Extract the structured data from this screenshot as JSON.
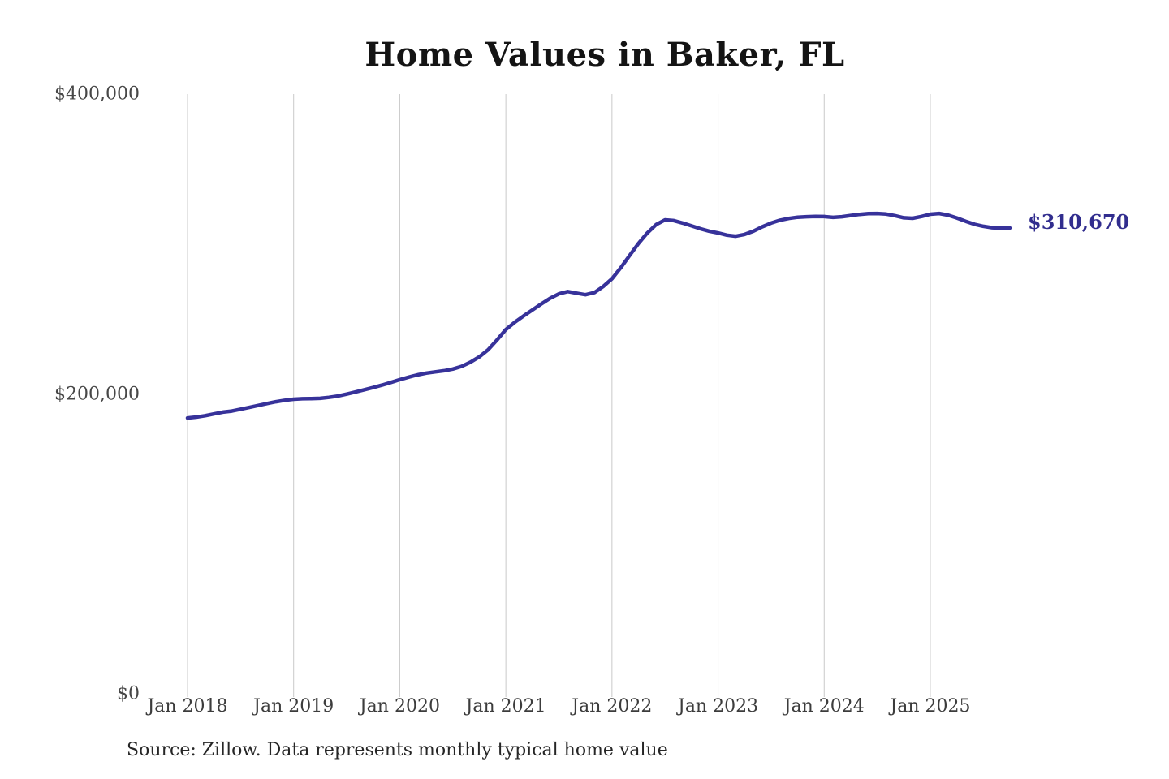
{
  "page": {
    "source_note": "Source: Zillow. Data represents monthly typical home value"
  },
  "chart_data": {
    "type": "line",
    "title": "Home Values in Baker, FL",
    "series_name": "Monthly typical home value",
    "x_start": "2018-01",
    "x_end": "2025-10",
    "x_interval": "monthly",
    "xtick_labels": [
      "Jan 2018",
      "Jan 2019",
      "Jan 2020",
      "Jan 2021",
      "Jan 2022",
      "Jan 2023",
      "Jan 2024",
      "Jan 2025"
    ],
    "yticks": [
      {
        "label": "$400,000",
        "value": 400000
      },
      {
        "label": "$200,000",
        "value": 200000
      },
      {
        "label": "$0",
        "value": 0
      }
    ],
    "ylim": [
      0,
      400000
    ],
    "grid": "vertical-only",
    "legend": "none",
    "end_label": "$310,670",
    "end_value": 310670,
    "colors": {
      "line": "#37329a",
      "end_label": "#312d8e",
      "gridline": "#c9c9c9",
      "axis_text": "#3c3c3c",
      "title_text": "#141414"
    },
    "values": [
      184000,
      184600,
      185500,
      186700,
      187900,
      188600,
      189800,
      191000,
      192300,
      193600,
      194800,
      195800,
      196500,
      196800,
      196900,
      197100,
      197700,
      198600,
      199900,
      201300,
      202800,
      204300,
      205900,
      207700,
      209500,
      211200,
      212700,
      213900,
      214700,
      215500,
      216600,
      218400,
      221200,
      224800,
      229500,
      236000,
      243000,
      247800,
      252000,
      256000,
      260000,
      263800,
      266800,
      268300,
      267200,
      266200,
      267600,
      271600,
      276800,
      284200,
      292400,
      300400,
      307400,
      313000,
      316100,
      315600,
      314000,
      312100,
      310200,
      308600,
      307400,
      305900,
      305200,
      306400,
      308600,
      311500,
      314000,
      315900,
      317100,
      317900,
      318200,
      318400,
      318300,
      317800,
      318200,
      319000,
      319800,
      320300,
      320400,
      320000,
      318900,
      317500,
      317200,
      318400,
      319900,
      320400,
      319300,
      317400,
      315200,
      313200,
      311800,
      310900,
      310600,
      310670
    ]
  }
}
